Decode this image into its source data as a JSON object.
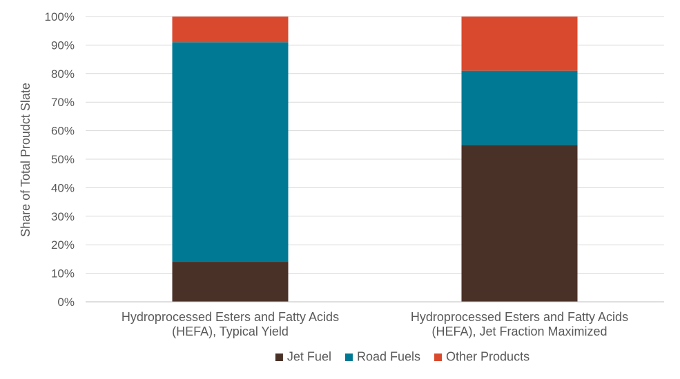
{
  "chart_data": {
    "type": "bar",
    "stacked": true,
    "title": "",
    "ylabel": "Share of Total Proudct Slate",
    "ylim": [
      0,
      100
    ],
    "y_ticks": [
      "0%",
      "10%",
      "20%",
      "30%",
      "40%",
      "50%",
      "60%",
      "70%",
      "80%",
      "90%",
      "100%"
    ],
    "grid": true,
    "legend_position": "bottom",
    "categories": [
      [
        "Hydroprocessed Esters and Fatty Acids",
        "(HEFA), Typical Yield"
      ],
      [
        "Hydroprocessed Esters and Fatty Acids",
        "(HEFA), Jet Fraction Maximized"
      ]
    ],
    "series": [
      {
        "name": "Jet Fuel",
        "color": "#4a3128",
        "values": [
          14,
          55
        ]
      },
      {
        "name": "Road Fuels",
        "color": "#007a94",
        "values": [
          77,
          26
        ]
      },
      {
        "name": "Other Products",
        "color": "#d9492d",
        "values": [
          9,
          19
        ]
      }
    ]
  }
}
